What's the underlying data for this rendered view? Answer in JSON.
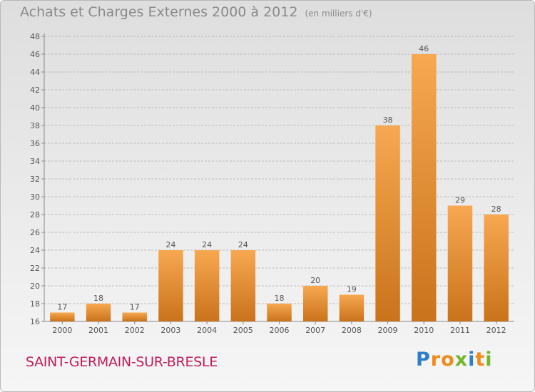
{
  "title": {
    "main": "Achats et Charges Externes 2000 à 2012",
    "unit": "(en milliers d'€)"
  },
  "location": "SAINT-GERMAIN-SUR-BRESLE",
  "logo": {
    "letters": [
      "P",
      "r",
      "o",
      "x",
      "i",
      "t",
      "i"
    ],
    "colors": [
      "#2f7fc7",
      "#f08a1c",
      "#f08a1c",
      "#73b62b",
      "#2f7fc7",
      "#f08a1c",
      "#73b62b"
    ]
  },
  "colors": {
    "bar_light": "#f7a850",
    "bar_dark": "#c9731c",
    "grid": "#bcbcbc",
    "text": "#555555"
  },
  "chart_data": {
    "type": "bar",
    "title": "Achats et Charges Externes 2000 à 2012",
    "categories": [
      "2000",
      "2001",
      "2002",
      "2003",
      "2004",
      "2005",
      "2006",
      "2007",
      "2008",
      "2009",
      "2010",
      "2011",
      "2012"
    ],
    "values": [
      17,
      18,
      17,
      24,
      24,
      24,
      18,
      20,
      19,
      38,
      46,
      29,
      28
    ],
    "ylim": [
      16,
      48
    ],
    "yticks": [
      16,
      18,
      20,
      22,
      24,
      26,
      28,
      30,
      32,
      34,
      36,
      38,
      40,
      42,
      44,
      46,
      48
    ],
    "grid": true
  }
}
